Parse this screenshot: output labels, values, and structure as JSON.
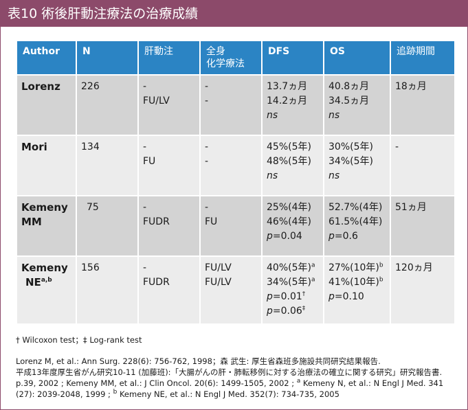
{
  "title": "表10  術後肝動注療法の治療成績",
  "headers": [
    "Author",
    "N",
    "肝動注",
    "全身",
    "化学療法",
    "DFS",
    "OS",
    "追跡期間"
  ],
  "rows": [
    {
      "author": "Lorenz",
      "author2": "",
      "author_sup": "",
      "n": "226",
      "hai": [
        "-",
        "FU/LV"
      ],
      "sys": [
        "-",
        "-"
      ],
      "dfs": [
        "13.7ヵ月",
        "14.2ヵ月",
        "ns"
      ],
      "os": [
        "40.8ヵ月",
        "34.5ヵ月",
        "ns"
      ],
      "fu": "18ヵ月"
    },
    {
      "author": "Mori",
      "author2": "",
      "author_sup": "",
      "n": "134",
      "hai": [
        "-",
        "FU"
      ],
      "sys": [
        "-",
        "-"
      ],
      "dfs": [
        "45%(5年)",
        "48%(5年)",
        "ns"
      ],
      "os": [
        "30%(5年)",
        "34%(5年)",
        "ns"
      ],
      "fu": "-"
    },
    {
      "author": "Kemeny",
      "author2": "MM",
      "author_sup": "",
      "n": "75",
      "hai": [
        "-",
        "FUDR"
      ],
      "sys": [
        "-",
        "FU"
      ],
      "dfs": [
        "25%(4年)",
        "46%(4年)",
        "p",
        "=0.04"
      ],
      "os": [
        "52.7%(4年)",
        "61.5%(4年)",
        "p",
        "=0.6"
      ],
      "fu": "51ヵ月"
    },
    {
      "author": "Kemeny",
      "author2": "NE",
      "author_sup": "a,b",
      "n": "156",
      "hai": [
        "-",
        "FUDR"
      ],
      "sys": [
        "FU/LV",
        "FU/LV"
      ],
      "dfs": [
        "40%(5年)",
        "a",
        "34%(5年)",
        "a",
        "p",
        "=0.01",
        "†",
        "p",
        "=0.06",
        "‡"
      ],
      "os": [
        "27%(10年)",
        "b",
        "41%(10年)",
        "b",
        "p",
        "=0.10"
      ],
      "fu": "120ヵ月"
    }
  ],
  "footnote_symbols": "† Wilcoxon test；‡ Log-rank test",
  "ref_line1": "Lorenz M, et al.: Ann Surg. 228(6): 756-762, 1998；森  武生: 厚生省森班多施設共同研究結果報告.",
  "ref_line2": "平成13年度厚生省がん研究10-11 (加藤班):「大腸がんの肝・肺転移例に対する治療法の確立に関する研究」研究報告書.",
  "ref_line3a": "p.39, 2002 ; Kemeny MM, et al.: J Clin Oncol. 20(6): 1499-1505, 2002 ; ",
  "ref_line3b": "a",
  "ref_line3c": " Kemeny N, et al.: N Engl J Med. 341",
  "ref_line4a": "(27): 2039-2048, 1999 ; ",
  "ref_line4b": "b",
  "ref_line4c": " Kemeny NE, et al.: N Engl J Med. 352(7): 734-735, 2005",
  "colors": {
    "title_bar": "#8c4a6a",
    "header": "#2b84c4",
    "row_dark": "#d3d3d3",
    "row_light": "#ececec"
  }
}
